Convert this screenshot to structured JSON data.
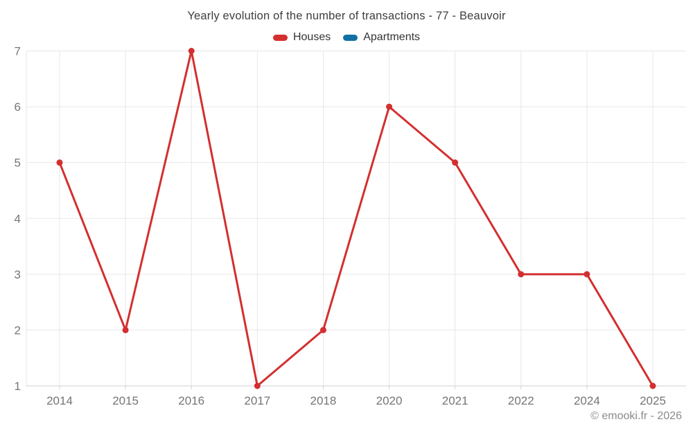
{
  "page": {
    "title": "Yearly evolution of the number of transactions - 77 - Beauvoir",
    "footer": "© emooki.fr - 2026"
  },
  "legend": {
    "items": [
      {
        "label": "Houses",
        "color": "#d32f2f"
      },
      {
        "label": "Apartments",
        "color": "#1170a3"
      }
    ]
  },
  "chart_data": {
    "type": "line",
    "title": "Yearly evolution of the number of transactions - 77 - Beauvoir",
    "categories": [
      "2014",
      "2015",
      "2016",
      "2017",
      "2018",
      "2020",
      "2021",
      "2022",
      "2024",
      "2025"
    ],
    "series": [
      {
        "name": "Houses",
        "color": "#d32f2f",
        "values": [
          5,
          2,
          7,
          1,
          2,
          6,
          5,
          3,
          3,
          1
        ]
      },
      {
        "name": "Apartments",
        "color": "#1170a3",
        "values": []
      }
    ],
    "xlabel": "",
    "ylabel": "",
    "ylim": [
      1,
      7
    ],
    "yticks": [
      1,
      2,
      3,
      4,
      5,
      6,
      7
    ],
    "grid": true,
    "legend_position": "top",
    "colors": {
      "grid": "#e7e7e7",
      "axis_line": "#cfcfcf",
      "tick_label": "#757575"
    }
  }
}
